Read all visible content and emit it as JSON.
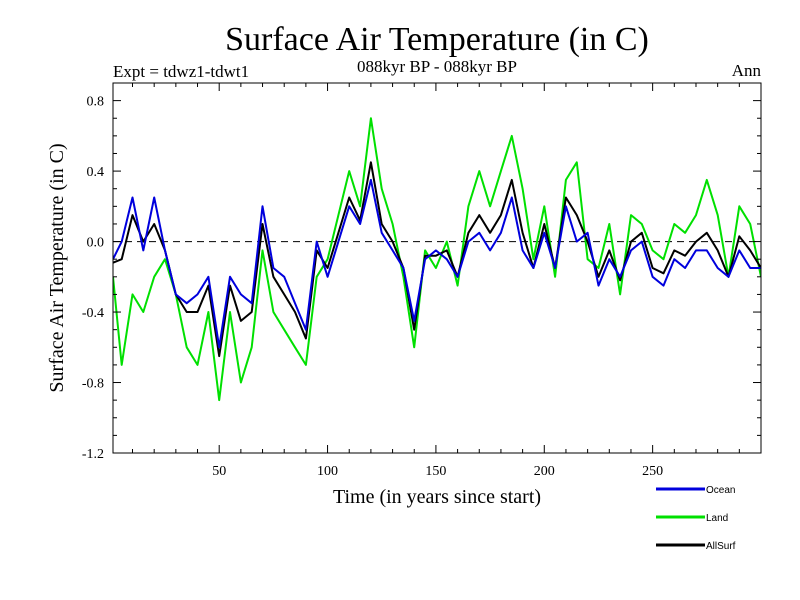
{
  "chart_data": {
    "type": "line",
    "title": "Surface Air Temperature (in C)",
    "subtitle_left": "Expt = tdwz1-tdwt1",
    "subtitle_center": "088kyr BP - 088kyr BP",
    "subtitle_right": "Ann",
    "xlabel": "Time (in years since start)",
    "ylabel": "Surface Air Temperature (in C)",
    "xlim": [
      1,
      300
    ],
    "ylim": [
      -1.2,
      0.9
    ],
    "x_ticks": [
      50,
      100,
      150,
      200,
      250
    ],
    "y_ticks": [
      0.8,
      0.4,
      0.0,
      -0.4,
      -0.8,
      -1.2
    ],
    "y_tick_labels": [
      "0.8",
      "0.4",
      "0.0",
      "-0.4",
      "-0.8",
      "-1.2"
    ],
    "reference_line": 0.0,
    "legend_position": "bottom-right",
    "x": [
      1,
      5,
      10,
      15,
      20,
      25,
      30,
      35,
      40,
      45,
      50,
      55,
      60,
      65,
      70,
      75,
      80,
      85,
      90,
      95,
      100,
      105,
      110,
      115,
      120,
      125,
      130,
      135,
      140,
      145,
      150,
      155,
      160,
      165,
      170,
      175,
      180,
      185,
      190,
      195,
      200,
      205,
      210,
      215,
      220,
      225,
      230,
      235,
      240,
      245,
      250,
      255,
      260,
      265,
      270,
      275,
      280,
      285,
      290,
      295,
      300
    ],
    "series": [
      {
        "name": "Ocean",
        "color": "#0000dd",
        "values": [
          -0.1,
          0.0,
          0.25,
          -0.05,
          0.25,
          -0.05,
          -0.3,
          -0.35,
          -0.3,
          -0.2,
          -0.6,
          -0.2,
          -0.3,
          -0.35,
          0.2,
          -0.15,
          -0.2,
          -0.35,
          -0.5,
          0.0,
          -0.2,
          0.0,
          0.2,
          0.1,
          0.35,
          0.05,
          -0.05,
          -0.15,
          -0.45,
          -0.1,
          -0.05,
          -0.1,
          -0.2,
          0.0,
          0.05,
          -0.05,
          0.05,
          0.25,
          -0.05,
          -0.15,
          0.05,
          -0.15,
          0.2,
          0.0,
          0.05,
          -0.25,
          -0.1,
          -0.2,
          -0.05,
          0.0,
          -0.2,
          -0.25,
          -0.1,
          -0.15,
          -0.05,
          -0.05,
          -0.15,
          -0.2,
          -0.05,
          -0.15,
          -0.15
        ]
      },
      {
        "name": "Land",
        "color": "#00e000",
        "values": [
          -0.2,
          -0.7,
          -0.3,
          -0.4,
          -0.2,
          -0.1,
          -0.3,
          -0.6,
          -0.7,
          -0.4,
          -0.9,
          -0.4,
          -0.8,
          -0.6,
          -0.05,
          -0.4,
          -0.5,
          -0.6,
          -0.7,
          -0.2,
          -0.1,
          0.15,
          0.4,
          0.2,
          0.7,
          0.3,
          0.1,
          -0.2,
          -0.6,
          -0.05,
          -0.15,
          0.0,
          -0.25,
          0.2,
          0.4,
          0.2,
          0.4,
          0.6,
          0.3,
          -0.1,
          0.2,
          -0.2,
          0.35,
          0.45,
          -0.1,
          -0.15,
          0.1,
          -0.3,
          0.15,
          0.1,
          -0.05,
          -0.1,
          0.1,
          0.05,
          0.15,
          0.35,
          0.15,
          -0.2,
          0.2,
          0.1,
          -0.2
        ]
      },
      {
        "name": "AllSurf",
        "color": "#000000",
        "values": [
          -0.12,
          -0.1,
          0.15,
          0.0,
          0.1,
          -0.05,
          -0.3,
          -0.4,
          -0.4,
          -0.25,
          -0.65,
          -0.25,
          -0.45,
          -0.4,
          0.1,
          -0.2,
          -0.3,
          -0.4,
          -0.55,
          -0.05,
          -0.15,
          0.05,
          0.25,
          0.12,
          0.45,
          0.1,
          0.0,
          -0.15,
          -0.5,
          -0.08,
          -0.08,
          -0.05,
          -0.2,
          0.05,
          0.15,
          0.05,
          0.15,
          0.35,
          0.05,
          -0.15,
          0.1,
          -0.15,
          0.25,
          0.15,
          0.0,
          -0.2,
          -0.05,
          -0.22,
          0.0,
          0.05,
          -0.15,
          -0.18,
          -0.05,
          -0.08,
          0.0,
          0.05,
          -0.05,
          -0.2,
          0.03,
          -0.05,
          -0.15
        ]
      }
    ]
  }
}
